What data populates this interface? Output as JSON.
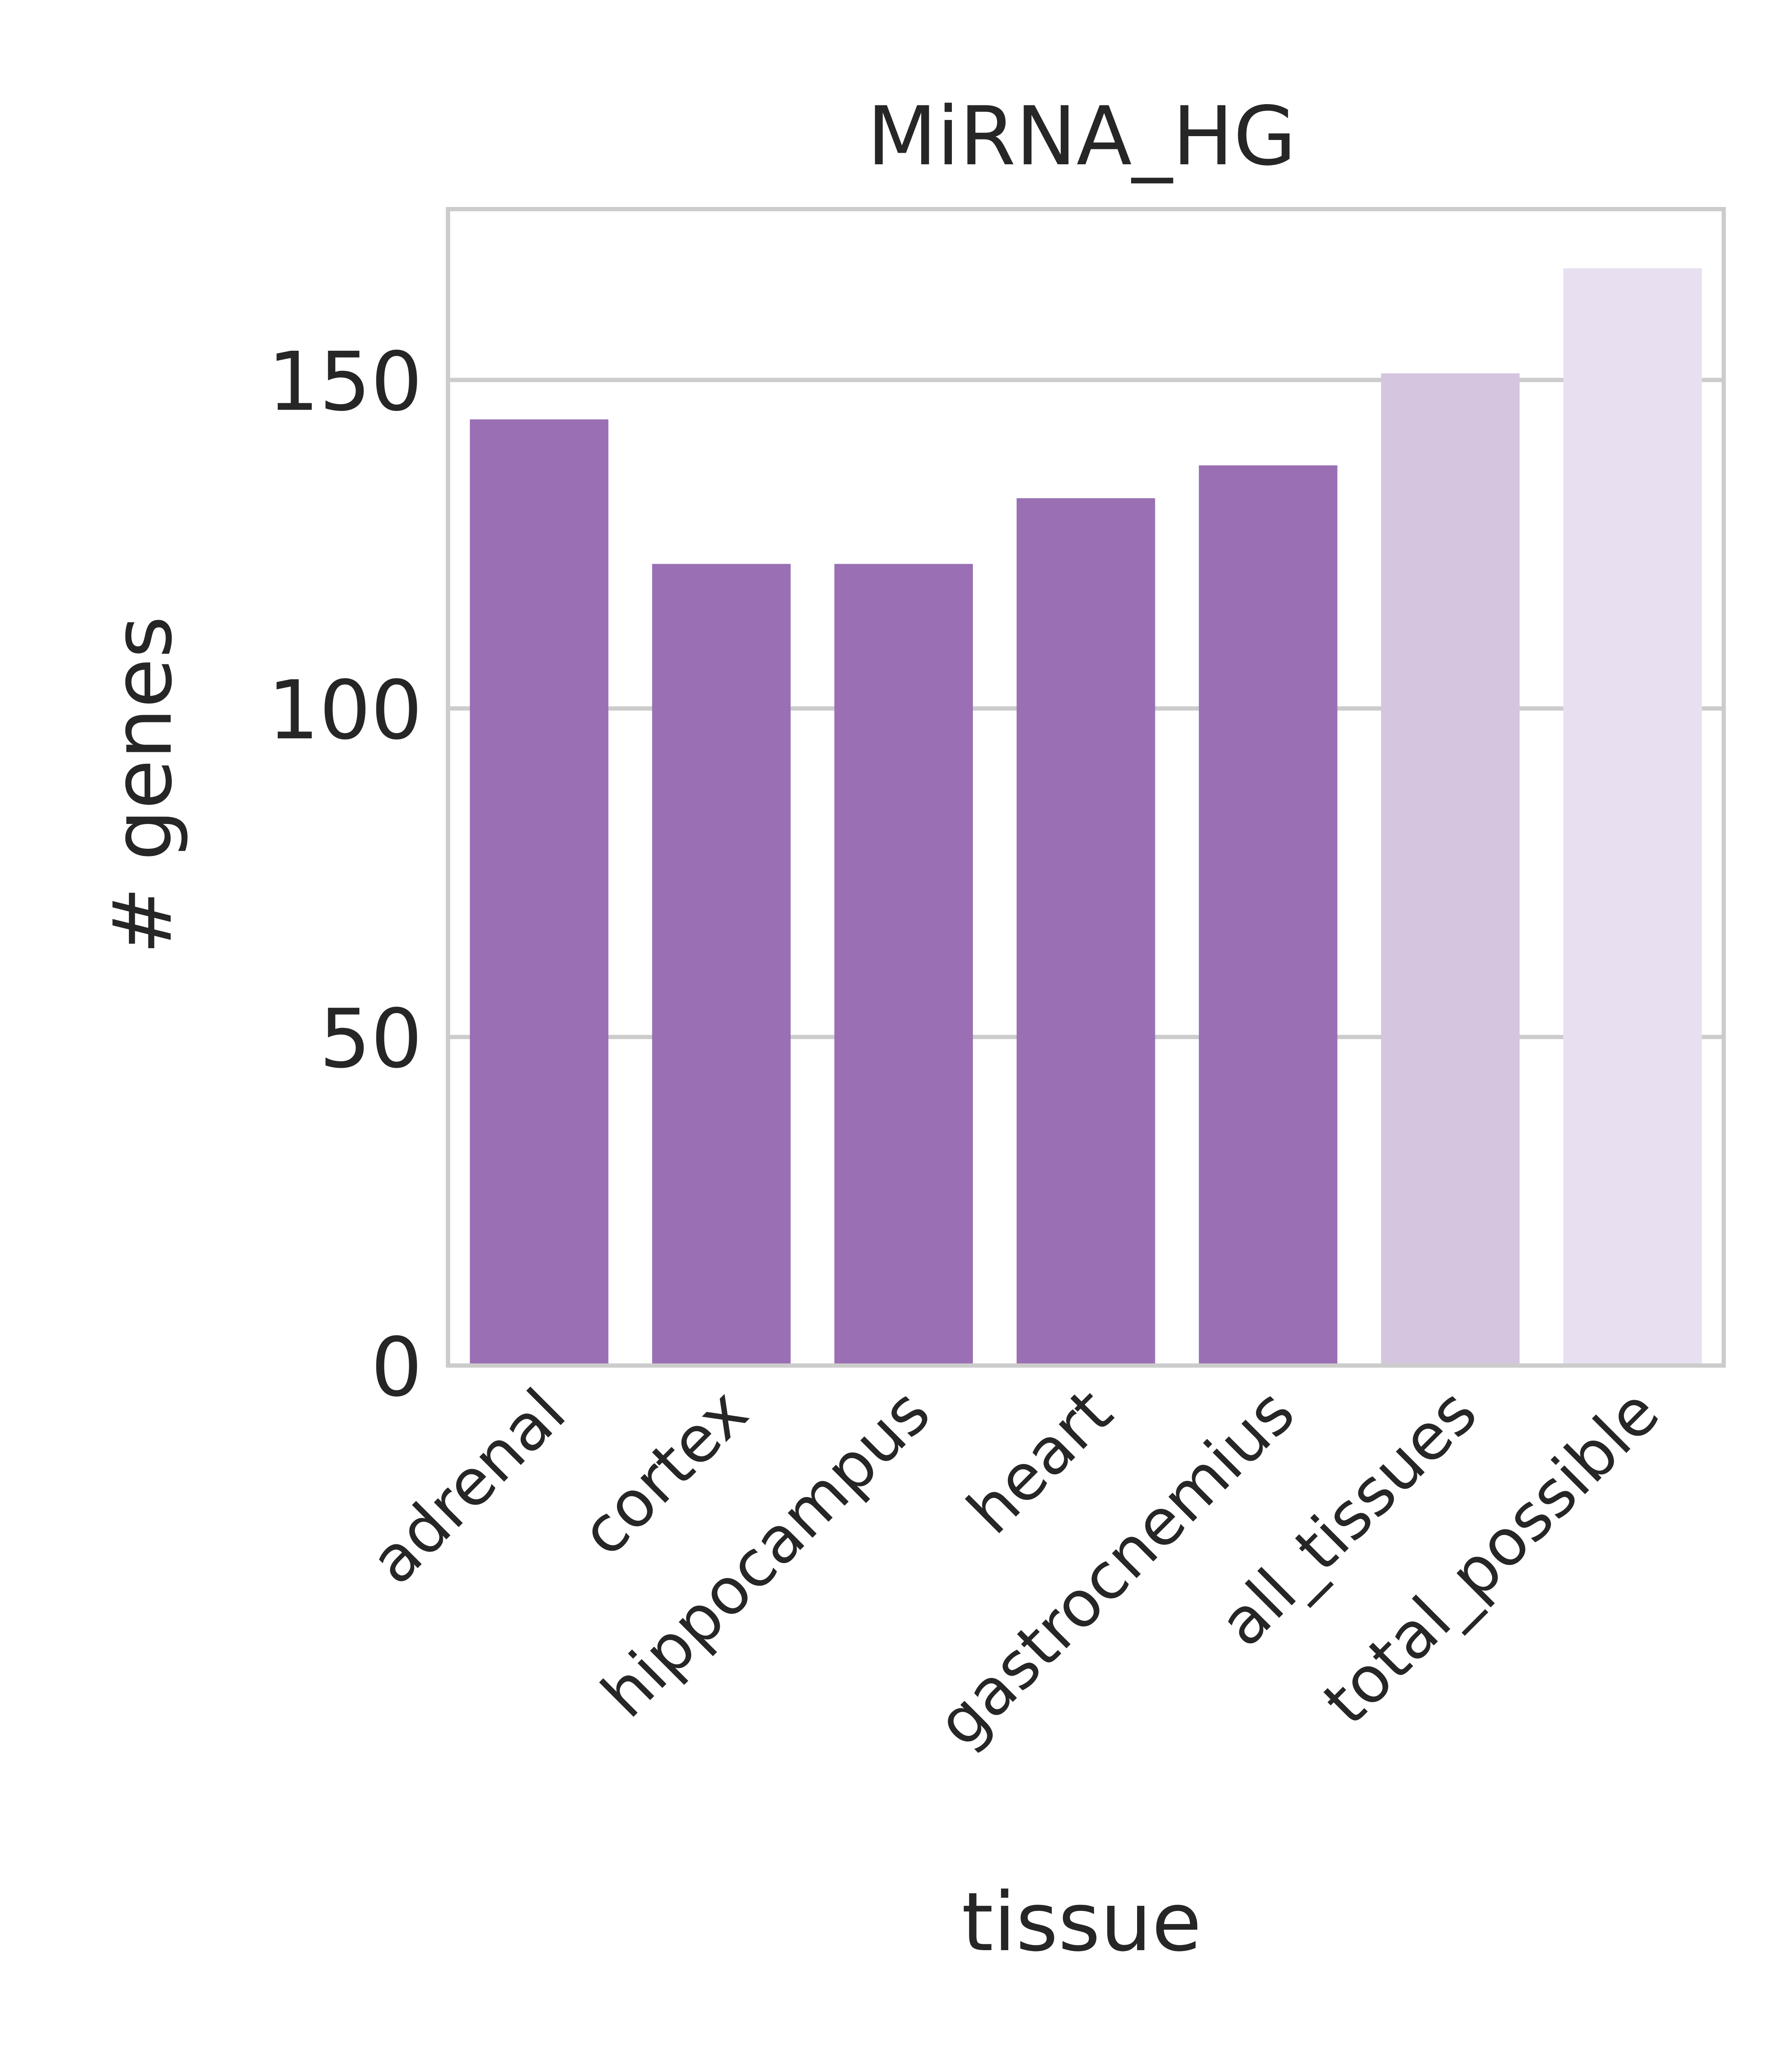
{
  "chart_data": {
    "type": "bar",
    "title": "MiRNA_HG",
    "xlabel": "tissue",
    "ylabel": "# genes",
    "categories": [
      "adrenal",
      "cortex",
      "hippocampus",
      "heart",
      "gastrocnemius",
      "all_tissues",
      "total_possible"
    ],
    "values": [
      144,
      122,
      122,
      132,
      137,
      151,
      167
    ],
    "bar_colors": [
      "#9a6fb4",
      "#9a6fb4",
      "#9a6fb4",
      "#9a6fb4",
      "#9a6fb4",
      "#d6c5df",
      "#e8dff0"
    ],
    "ylim": [
      0,
      176
    ],
    "yticks": [
      0,
      50,
      100,
      150
    ],
    "ytick_labels": [
      "0",
      "50",
      "100",
      "150"
    ],
    "grid": "y",
    "legend": "none"
  }
}
